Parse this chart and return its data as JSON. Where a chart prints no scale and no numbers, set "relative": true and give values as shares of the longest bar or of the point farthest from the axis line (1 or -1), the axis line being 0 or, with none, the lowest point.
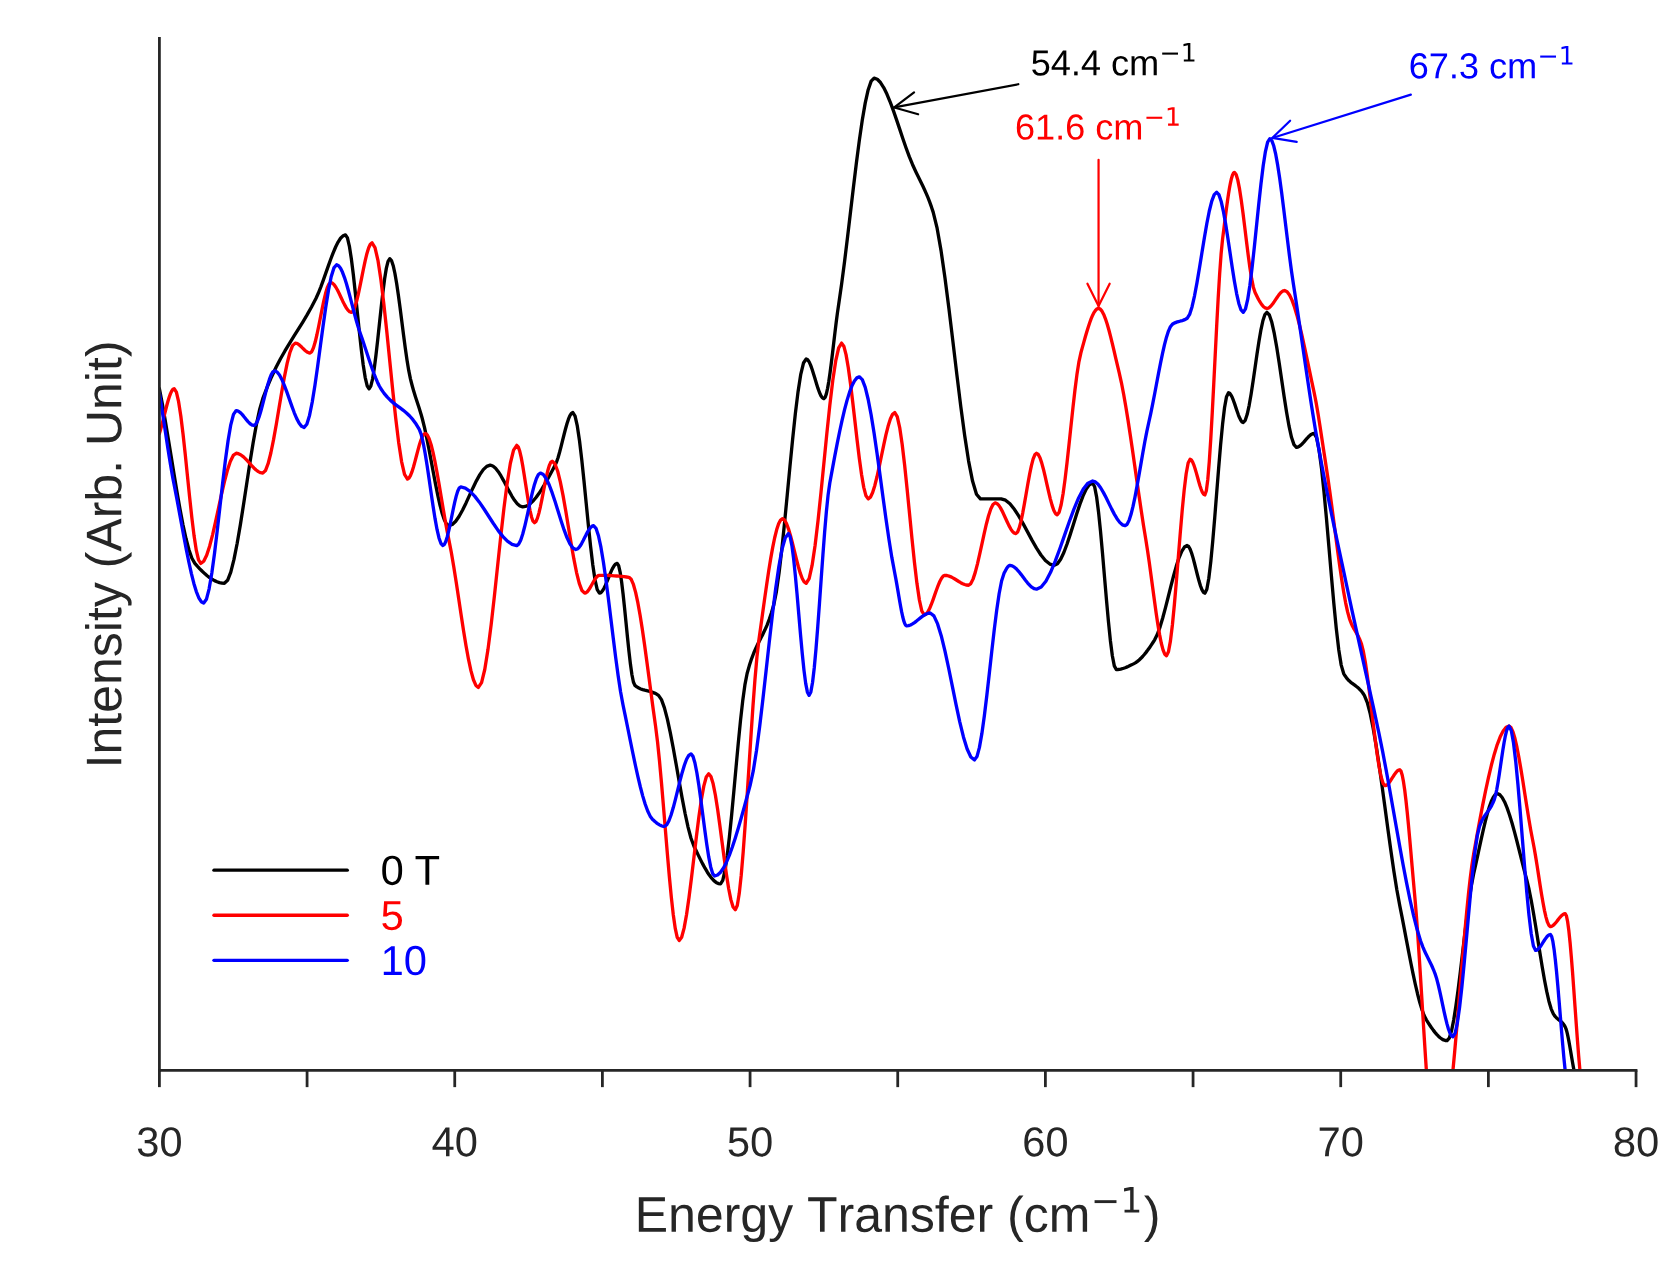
{
  "chart_data": {
    "type": "line",
    "relative": true,
    "xlabel": "Energy Transfer (cm$^{−1}$)",
    "ylabel": "Intensity (Arb. Unit)",
    "xlim": [
      30,
      80
    ],
    "xticks": [
      30,
      {
        "value": 35,
        "label": null
      },
      40,
      {
        "value": 45,
        "label": null
      },
      50,
      {
        "value": 55,
        "label": null
      },
      60,
      {
        "value": 65,
        "label": null
      },
      70,
      {
        "value": 75,
        "label": null
      },
      80
    ],
    "grid": false,
    "legend": "bottom left",
    "line_style": "solid",
    "marker": "none",
    "annotations": [
      {
        "text": "54.4 cm$^{−1}$",
        "x": 54.8,
        "y": 0.97
      },
      {
        "text": "61.6 cm$^{−1}$",
        "x": 61.8,
        "y": 0.768
      },
      {
        "text": "67.3 cm$^{−1}$",
        "x": 67.6,
        "y": 0.939
      }
    ],
    "series": [
      {
        "name": "0 T",
        "color": "#000000",
        "x": [
          30,
          31.2,
          32.2,
          33.5,
          35.3,
          36.3,
          37.1,
          37.8,
          38.5,
          38.9,
          39.8,
          41.2,
          42.3,
          43.4,
          44.0,
          44.9,
          45.5,
          46.1,
          46.9,
          48.1,
          49.0,
          49.9,
          50.8,
          51.9,
          52.5,
          53.0,
          54.2,
          55.5,
          56.2,
          57.8,
          58.5,
          60.3,
          61.6,
          62.4,
          63.0,
          63.7,
          64.8,
          65.4,
          66.2,
          66.7,
          67.5,
          68.5,
          69.1,
          70.1,
          70.8,
          72.0,
          72.9,
          73.6,
          74.5,
          75.3,
          76.3,
          77.2,
          77.6,
          77.9
        ],
        "values": [
          0.687,
          0.511,
          0.491,
          0.677,
          0.778,
          0.842,
          0.687,
          0.818,
          0.697,
          0.657,
          0.549,
          0.61,
          0.568,
          0.61,
          0.663,
          0.481,
          0.511,
          0.388,
          0.378,
          0.226,
          0.188,
          0.4,
          0.469,
          0.717,
          0.677,
          0.772,
          1.0,
          0.913,
          0.865,
          0.576,
          0.576,
          0.509,
          0.592,
          0.404,
          0.41,
          0.434,
          0.529,
          0.481,
          0.683,
          0.653,
          0.764,
          0.628,
          0.642,
          0.4,
          0.378,
          0.166,
          0.051,
          0.03,
          0.198,
          0.279,
          0.192,
          0.057,
          0.044,
          0.0
        ]
      },
      {
        "name": "5",
        "color": "#ff0000",
        "x": [
          30,
          30.5,
          31.4,
          32.6,
          33.5,
          34.6,
          35.1,
          35.8,
          36.5,
          37.2,
          38.4,
          39.0,
          39.8,
          40.8,
          42.1,
          42.7,
          43.3,
          44.4,
          44.9,
          45.9,
          46.8,
          47.6,
          48.6,
          49.5,
          50.3,
          51.1,
          51.9,
          53.1,
          54.0,
          54.9,
          55.9,
          56.6,
          57.4,
          58.3,
          59.0,
          59.7,
          60.4,
          61.2,
          61.8,
          62.5,
          63.4,
          64.1,
          64.9,
          65.4,
          66.0,
          66.4,
          67.1,
          67.5,
          68.1,
          69.1,
          69.5,
          70.3,
          70.7,
          71.5,
          72.0,
          72.5,
          72.9,
          73.4,
          73.8,
          74.5,
          75.7,
          76.5,
          77.1,
          77.6,
          78.1
        ],
        "values": [
          0.642,
          0.687,
          0.511,
          0.622,
          0.602,
          0.733,
          0.723,
          0.794,
          0.764,
          0.834,
          0.596,
          0.642,
          0.535,
          0.386,
          0.63,
          0.552,
          0.614,
          0.481,
          0.499,
          0.497,
          0.347,
          0.131,
          0.299,
          0.162,
          0.434,
          0.556,
          0.491,
          0.733,
          0.576,
          0.663,
          0.459,
          0.499,
          0.489,
          0.572,
          0.541,
          0.622,
          0.56,
          0.723,
          0.768,
          0.703,
          0.535,
          0.418,
          0.616,
          0.58,
          0.838,
          0.905,
          0.784,
          0.768,
          0.786,
          0.683,
          0.61,
          0.455,
          0.43,
          0.287,
          0.303,
          0.178,
          0.0,
          null,
          0.0,
          0.218,
          0.347,
          0.232,
          0.145,
          0.158,
          0.0
        ]
      },
      {
        "name": "10",
        "color": "#0000ff",
        "x": [
          30,
          30.5,
          31.5,
          32.6,
          33.2,
          33.9,
          34.9,
          36.0,
          36.8,
          37.5,
          38.8,
          39.6,
          40.2,
          42.1,
          42.9,
          44.1,
          44.7,
          45.7,
          46.7,
          47.1,
          48.0,
          48.8,
          50.0,
          51.3,
          52.0,
          52.7,
          53.7,
          54.9,
          55.3,
          56.1,
          57.6,
          58.6,
          58.8,
          59.7,
          61.6,
          62.7,
          63.5,
          64.3,
          64.8,
          65.8,
          66.7,
          67.6,
          68.4,
          69.2,
          70.2,
          71.3,
          72.7,
          73.2,
          73.8,
          74.7,
          75.2,
          75.7,
          76.6,
          77.1,
          77.6
        ],
        "values": [
          0.683,
          0.59,
          0.471,
          0.665,
          0.65,
          0.705,
          0.648,
          0.812,
          0.743,
          0.687,
          0.646,
          0.529,
          0.588,
          0.529,
          0.602,
          0.525,
          0.549,
          0.368,
          0.253,
          0.246,
          0.319,
          0.196,
          0.287,
          0.541,
          0.378,
          0.592,
          0.699,
          0.501,
          0.448,
          0.461,
          0.313,
          0.501,
          0.509,
          0.485,
          0.594,
          0.549,
          0.653,
          0.752,
          0.758,
          0.885,
          0.764,
          0.939,
          0.792,
          0.636,
          0.489,
          0.339,
          0.131,
          0.097,
          0.034,
          0.246,
          0.273,
          0.347,
          0.121,
          0.137,
          0.0
        ]
      }
    ]
  }
}
